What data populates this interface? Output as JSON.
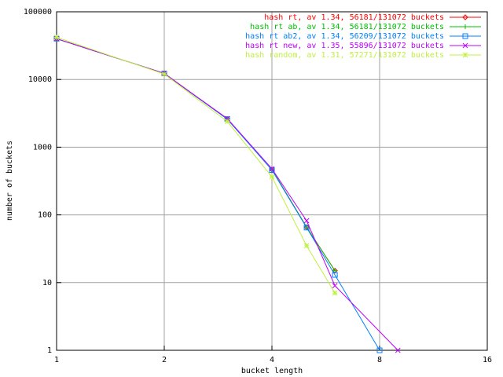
{
  "chart_data": {
    "type": "line",
    "xlabel": "bucket length",
    "ylabel": "number of buckets",
    "xlim": [
      1,
      16
    ],
    "ylim": [
      1,
      100000
    ],
    "xlog_base": 2,
    "ylog_base": 10,
    "xticks": [
      1,
      2,
      4,
      8,
      16
    ],
    "yticks": [
      1,
      10,
      100,
      1000,
      10000,
      100000
    ],
    "grid": true,
    "legend": "top-right",
    "series": [
      {
        "name": "hash rt, av 1.34, 56181/131072 buckets",
        "color": "#ff0000",
        "marker": "diamond",
        "x": [
          1,
          2,
          3,
          4,
          5,
          6
        ],
        "values": [
          40000,
          12300,
          2600,
          470,
          66,
          15
        ]
      },
      {
        "name": "hash rt ab, av 1.34, 56181/131072 buckets",
        "color": "#00c000",
        "marker": "plus",
        "x": [
          1,
          2,
          3,
          4,
          5,
          6
        ],
        "values": [
          40000,
          12300,
          2600,
          470,
          66,
          15
        ]
      },
      {
        "name": "hash rt ab2, av 1.34, 56209/131072 buckets",
        "color": "#0080ff",
        "marker": "square",
        "x": [
          1,
          2,
          3,
          4,
          5,
          6,
          8
        ],
        "values": [
          40000,
          12300,
          2600,
          460,
          65,
          13,
          1
        ]
      },
      {
        "name": "hash rt new, av 1.35, 55896/131072 buckets",
        "color": "#c000ff",
        "marker": "cross",
        "x": [
          1,
          2,
          3,
          4,
          5,
          6,
          9
        ],
        "values": [
          40000,
          12300,
          2650,
          480,
          82,
          9,
          1
        ]
      },
      {
        "name": "hash random, av 1.31, 57271/131072 buckets",
        "color": "#c0f040",
        "marker": "star",
        "x": [
          1,
          2,
          3,
          4,
          5,
          6
        ],
        "values": [
          42000,
          12000,
          2400,
          365,
          35,
          7
        ]
      }
    ]
  }
}
